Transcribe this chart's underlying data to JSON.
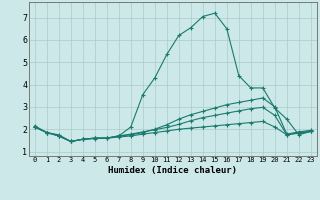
{
  "xlabel": "Humidex (Indice chaleur)",
  "xlim": [
    -0.5,
    23.5
  ],
  "ylim": [
    0.8,
    7.7
  ],
  "xticks": [
    0,
    1,
    2,
    3,
    4,
    5,
    6,
    7,
    8,
    9,
    10,
    11,
    12,
    13,
    14,
    15,
    16,
    17,
    18,
    19,
    20,
    21,
    22,
    23
  ],
  "yticks": [
    1,
    2,
    3,
    4,
    5,
    6,
    7
  ],
  "bg_color": "#cce8e8",
  "grid_color": "#aacccc",
  "line_color": "#1a7a6e",
  "lines": [
    {
      "x": [
        0,
        1,
        2,
        3,
        4,
        5,
        6,
        7,
        8,
        9,
        10,
        11,
        12,
        13,
        14,
        15,
        16,
        17,
        18,
        19,
        20,
        21,
        22,
        23
      ],
      "y": [
        2.15,
        1.85,
        1.75,
        1.45,
        1.55,
        1.6,
        1.6,
        1.7,
        2.1,
        3.55,
        4.3,
        5.35,
        6.2,
        6.55,
        7.05,
        7.2,
        6.5,
        4.4,
        3.85,
        3.85,
        2.95,
        2.45,
        1.75,
        1.9
      ]
    },
    {
      "x": [
        0,
        1,
        2,
        3,
        4,
        5,
        6,
        7,
        8,
        9,
        10,
        11,
        12,
        13,
        14,
        15,
        16,
        17,
        18,
        19,
        20,
        21,
        22,
        23
      ],
      "y": [
        2.1,
        1.85,
        1.7,
        1.45,
        1.55,
        1.6,
        1.6,
        1.7,
        1.75,
        1.85,
        2.0,
        2.2,
        2.45,
        2.65,
        2.8,
        2.95,
        3.1,
        3.2,
        3.3,
        3.4,
        3.0,
        1.78,
        1.88,
        1.95
      ]
    },
    {
      "x": [
        0,
        1,
        2,
        3,
        4,
        5,
        6,
        7,
        8,
        9,
        10,
        11,
        12,
        13,
        14,
        15,
        16,
        17,
        18,
        19,
        20,
        21,
        22,
        23
      ],
      "y": [
        2.1,
        1.85,
        1.7,
        1.45,
        1.55,
        1.6,
        1.6,
        1.7,
        1.78,
        1.88,
        1.98,
        2.08,
        2.22,
        2.38,
        2.52,
        2.62,
        2.72,
        2.82,
        2.92,
        2.98,
        2.62,
        1.75,
        1.85,
        1.9
      ]
    },
    {
      "x": [
        0,
        1,
        2,
        3,
        4,
        5,
        6,
        7,
        8,
        9,
        10,
        11,
        12,
        13,
        14,
        15,
        16,
        17,
        18,
        19,
        20,
        21,
        22,
        23
      ],
      "y": [
        2.1,
        1.85,
        1.7,
        1.45,
        1.55,
        1.58,
        1.6,
        1.65,
        1.7,
        1.78,
        1.85,
        1.92,
        2.0,
        2.05,
        2.1,
        2.15,
        2.2,
        2.25,
        2.3,
        2.35,
        2.1,
        1.75,
        1.82,
        1.9
      ]
    }
  ]
}
